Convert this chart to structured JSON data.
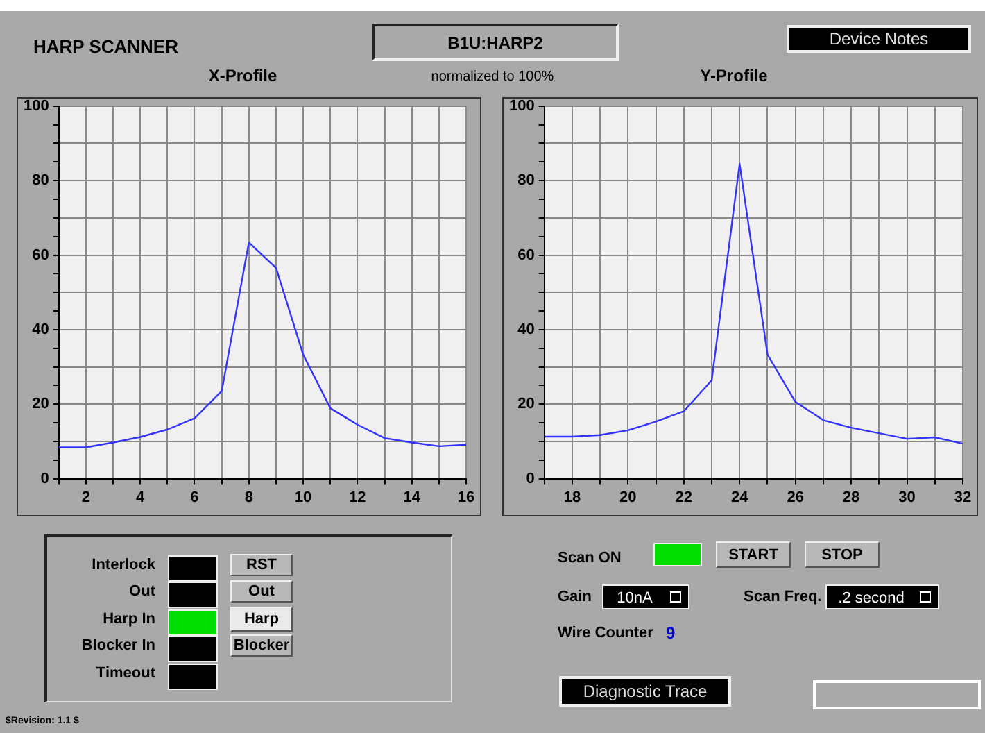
{
  "chart_data": [
    {
      "type": "line",
      "title": "X-Profile",
      "x": [
        1,
        2,
        3,
        4,
        5,
        6,
        7,
        8,
        9,
        10,
        11,
        12,
        13,
        14,
        15,
        16
      ],
      "series": [
        {
          "color": "#3333ff",
          "values": [
            8.4,
            8.4,
            9.7,
            11.2,
            13.2,
            16.2,
            23.5,
            63.4,
            56.6,
            33.3,
            18.9,
            14.5,
            10.9,
            9.7,
            8.7,
            9.1
          ]
        }
      ],
      "xlim": [
        1,
        16
      ],
      "xticks": [
        {
          "value": 1,
          "label": null
        },
        2,
        {
          "value": 3,
          "label": null
        },
        4,
        {
          "value": 5,
          "label": null
        },
        6,
        {
          "value": 7,
          "label": null
        },
        8,
        {
          "value": 9,
          "label": null
        },
        10,
        {
          "value": 11,
          "label": null
        },
        12,
        {
          "value": 13,
          "label": null
        },
        14,
        {
          "value": 15,
          "label": null
        },
        16
      ],
      "ylim": [
        0,
        100
      ],
      "yticks": [
        0,
        {
          "value": 5,
          "label": null
        },
        {
          "value": 10,
          "label": null
        },
        {
          "value": 15,
          "label": null
        },
        20,
        {
          "value": 25,
          "label": null
        },
        {
          "value": 30,
          "label": null
        },
        {
          "value": 35,
          "label": null
        },
        40,
        {
          "value": 45,
          "label": null
        },
        {
          "value": 50,
          "label": null
        },
        {
          "value": 55,
          "label": null
        },
        60,
        {
          "value": 65,
          "label": null
        },
        {
          "value": 70,
          "label": null
        },
        {
          "value": 75,
          "label": null
        },
        80,
        {
          "value": 85,
          "label": null
        },
        {
          "value": 90,
          "label": null
        },
        {
          "value": 95,
          "label": null
        },
        100
      ],
      "grid": true,
      "marker": "none"
    },
    {
      "type": "line",
      "title": "Y-Profile",
      "x": [
        17,
        18,
        19,
        20,
        21,
        22,
        23,
        24,
        25,
        26,
        27,
        28,
        29,
        30,
        31,
        32
      ],
      "series": [
        {
          "color": "#3333ff",
          "values": [
            11.3,
            11.3,
            11.7,
            13.0,
            15.3,
            18.1,
            26.4,
            84.5,
            33.3,
            20.6,
            15.7,
            13.7,
            12.2,
            10.7,
            11.1,
            9.4
          ]
        }
      ],
      "xlim": [
        17,
        32
      ],
      "xticks": [
        {
          "value": 17,
          "label": null
        },
        18,
        {
          "value": 19,
          "label": null
        },
        20,
        {
          "value": 21,
          "label": null
        },
        22,
        {
          "value": 23,
          "label": null
        },
        24,
        {
          "value": 25,
          "label": null
        },
        26,
        {
          "value": 27,
          "label": null
        },
        28,
        {
          "value": 29,
          "label": null
        },
        30,
        {
          "value": 31,
          "label": null
        },
        32
      ],
      "ylim": [
        0,
        100
      ],
      "yticks": [
        0,
        {
          "value": 5,
          "label": null
        },
        {
          "value": 10,
          "label": null
        },
        {
          "value": 15,
          "label": null
        },
        20,
        {
          "value": 25,
          "label": null
        },
        {
          "value": 30,
          "label": null
        },
        {
          "value": 35,
          "label": null
        },
        40,
        {
          "value": 45,
          "label": null
        },
        {
          "value": 50,
          "label": null
        },
        {
          "value": 55,
          "label": null
        },
        60,
        {
          "value": 65,
          "label": null
        },
        {
          "value": 70,
          "label": null
        },
        {
          "value": 75,
          "label": null
        },
        80,
        {
          "value": 85,
          "label": null
        },
        {
          "value": 90,
          "label": null
        },
        {
          "value": 95,
          "label": null
        },
        100
      ],
      "grid": true,
      "marker": "none"
    },
    {
      "type": "other",
      "title": "HARP SCANNER",
      "annotations": [
        "B1U:HARP2",
        "Device Notes",
        "normalized to 100%",
        "Interlock",
        "Out",
        "Harp In",
        "Blocker In",
        "Timeout",
        "RST",
        "Out",
        "Harp",
        "Blocker",
        "Scan ON",
        "START",
        "STOP",
        "Gain",
        "10nA",
        "Scan Freq.",
        ".2 second",
        "Wire Counter",
        "9",
        "Diagnostic Trace",
        "$Revision: 1.1 $"
      ]
    }
  ]
}
